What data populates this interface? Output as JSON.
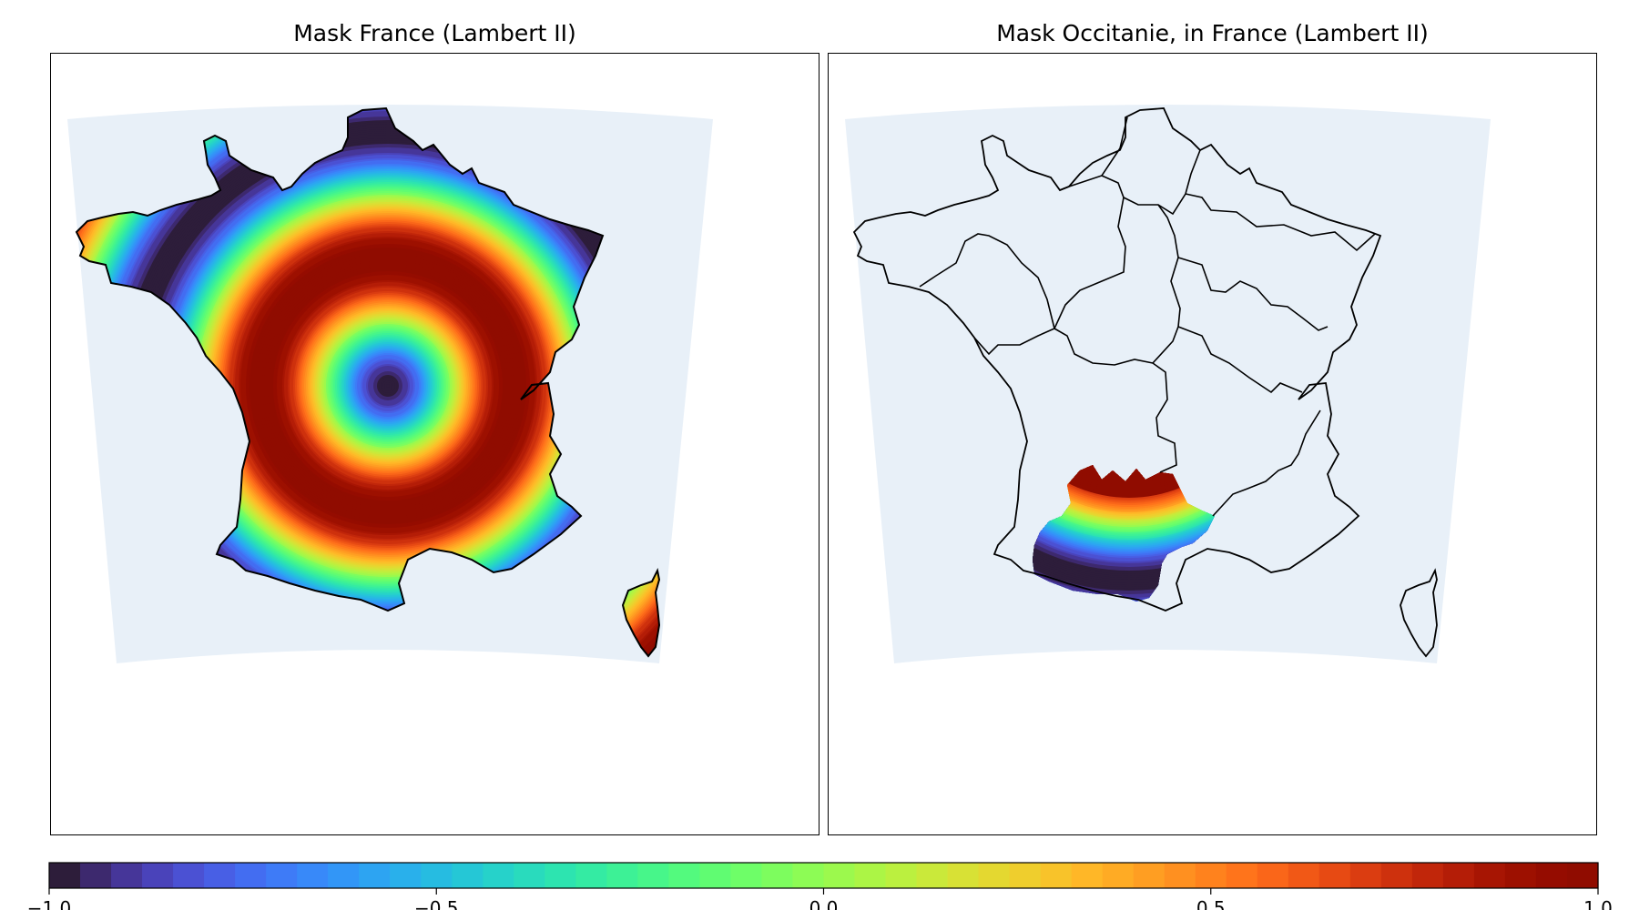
{
  "panels": [
    {
      "title": "Mask France (Lambert II)",
      "mask": "France"
    },
    {
      "title": "Mask Occitanie, in France (Lambert II)",
      "mask": "Occitanie"
    }
  ],
  "colorbar": {
    "min": -1.0,
    "max": 1.0,
    "ticks": [
      {
        "value": -1.0,
        "label": "−1.0"
      },
      {
        "value": -0.5,
        "label": "−0.5"
      },
      {
        "value": 0.0,
        "label": "0.0"
      },
      {
        "value": 0.5,
        "label": "0.5"
      },
      {
        "value": 1.0,
        "label": "1.0"
      }
    ],
    "levels": 50,
    "colormap": "turbo"
  },
  "colors": {
    "domain_fill": "#e8f0f8",
    "outline": "#000000",
    "frame": "#000000",
    "background": "#ffffff"
  }
}
